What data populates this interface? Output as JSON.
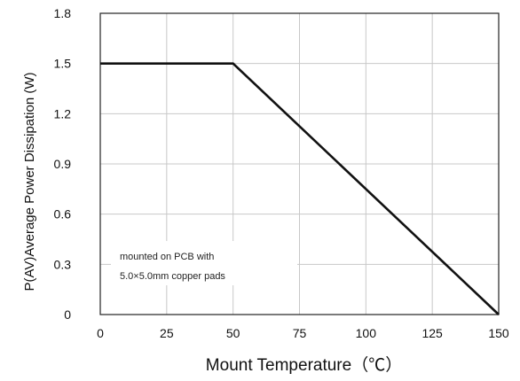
{
  "chart_data": {
    "type": "line",
    "xlabel": "Mount Temperature（℃）",
    "ylabel": "P(AV)Average Power Dissipation (W)",
    "xlim": [
      0,
      150
    ],
    "ylim": [
      0,
      1.8
    ],
    "x_ticks": [
      "0",
      "25",
      "50",
      "75",
      "100",
      "125",
      "150"
    ],
    "y_ticks": [
      "0",
      "0.3",
      "0.6",
      "0.9",
      "1.2",
      "1.5",
      "1.8"
    ],
    "grid": true,
    "series": [
      {
        "x": [
          0,
          50,
          150
        ],
        "y": [
          1.5,
          1.5,
          0
        ]
      }
    ],
    "annotation": {
      "lines": [
        "mounted on PCB with",
        "5.0×5.0mm copper pads"
      ]
    }
  }
}
